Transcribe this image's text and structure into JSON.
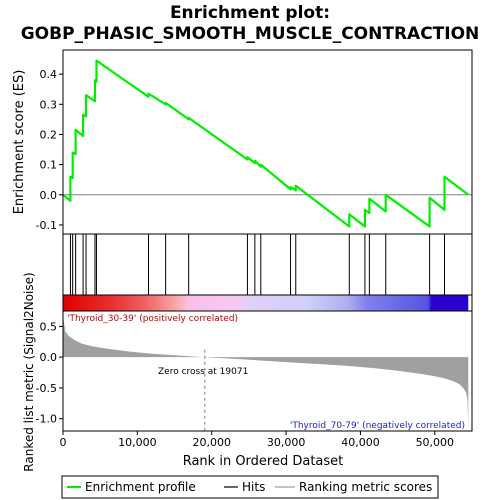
{
  "chart_data": {
    "type": "line",
    "title_line1": "Enrichment plot:",
    "title_line2": "GOBP_PHASIC_SMOOTH_MUSCLE_CONTRACTION",
    "es_ylabel": "Enrichment score (ES)",
    "metric_ylabel": "Ranked list metric (Signal2Noise)",
    "xlabel": "Rank in Ordered Dataset",
    "xlim": [
      0,
      55000
    ],
    "es_ylim": [
      -0.13,
      0.48
    ],
    "metric_ylim": [
      -1.2,
      0.75
    ],
    "x_ticks": [
      "0",
      "10,000",
      "20,000",
      "30,000",
      "40,000",
      "50,000"
    ],
    "x_tick_values": [
      0,
      10000,
      20000,
      30000,
      40000,
      50000
    ],
    "es_ticks": [
      "-0.1",
      "0.0",
      "0.1",
      "0.2",
      "0.3",
      "0.4"
    ],
    "es_tick_values": [
      -0.1,
      0.0,
      0.1,
      0.2,
      0.3,
      0.4
    ],
    "metric_ticks": [
      "-1.0",
      "-0.5",
      "0.0",
      "0.5"
    ],
    "metric_tick_values": [
      -1.0,
      -0.5,
      0.0,
      0.5
    ],
    "n_genes": 54500,
    "zero_cross": 19071,
    "zero_cross_text": "Zero cross at 19071",
    "pos_label": "'Thyroid_30-39' (positively correlated)",
    "neg_label": "'Thyroid_70-79' (negatively correlated)",
    "hits": [
      1000,
      1300,
      1700,
      2700,
      3100,
      4300,
      4500,
      11500,
      13800,
      16900,
      24800,
      25800,
      26600,
      30600,
      31300,
      38500,
      40600,
      41200,
      43400,
      49300,
      51300
    ],
    "es_profile": {
      "x": [
        0,
        1000,
        1000,
        1300,
        1300,
        1700,
        1700,
        2700,
        2700,
        3100,
        3100,
        4300,
        4300,
        4500,
        4500,
        11500,
        11500,
        13800,
        13800,
        16900,
        16900,
        24800,
        24800,
        25800,
        25800,
        26600,
        26600,
        30600,
        30600,
        31300,
        31300,
        38500,
        38500,
        40600,
        40600,
        41200,
        41200,
        43400,
        43400,
        49300,
        49300,
        51300,
        51300,
        54500
      ],
      "y": [
        0.0,
        -0.02,
        0.06,
        0.055,
        0.14,
        0.135,
        0.215,
        0.195,
        0.265,
        0.26,
        0.33,
        0.31,
        0.38,
        0.375,
        0.445,
        0.325,
        0.335,
        0.3,
        0.305,
        0.25,
        0.255,
        0.117,
        0.125,
        0.105,
        0.113,
        0.093,
        0.1,
        0.018,
        0.025,
        0.015,
        0.03,
        -0.105,
        -0.065,
        -0.105,
        -0.05,
        -0.06,
        -0.013,
        -0.055,
        0.0,
        -0.105,
        -0.01,
        -0.05,
        0.06,
        0.0
      ]
    },
    "metric_profile": {
      "x": [
        0,
        300,
        800,
        1500,
        2500,
        4000,
        6000,
        9000,
        12000,
        15000,
        17000,
        19071,
        22000,
        26000,
        30000,
        34000,
        38000,
        42000,
        45000,
        48000,
        50000,
        51500,
        52500,
        53300,
        53800,
        54200,
        54400,
        54500
      ],
      "y": [
        0.7,
        0.42,
        0.34,
        0.28,
        0.22,
        0.175,
        0.135,
        0.09,
        0.055,
        0.03,
        0.015,
        0.0,
        -0.02,
        -0.05,
        -0.08,
        -0.11,
        -0.14,
        -0.18,
        -0.22,
        -0.27,
        -0.31,
        -0.35,
        -0.39,
        -0.44,
        -0.5,
        -0.58,
        -0.7,
        -1.15
      ]
    },
    "colors": {
      "es_line": "#00ee00",
      "hit": "#000000",
      "metric_fill": "#a0a0a0",
      "zero_line": "#808080",
      "pos_label": "#cc0000",
      "neg_label": "#2222cc",
      "heat_stops": [
        [
          0.0,
          "#dd0000"
        ],
        [
          0.12,
          "#e83030"
        ],
        [
          0.2,
          "#f06060"
        ],
        [
          0.28,
          "#f8a8a8"
        ],
        [
          0.31,
          "#f8c0e8"
        ],
        [
          0.42,
          "#f8c8f0"
        ],
        [
          0.46,
          "#e0d0f8"
        ],
        [
          0.6,
          "#d0d0f8"
        ],
        [
          0.7,
          "#b0b0f0"
        ],
        [
          0.75,
          "#8080ee"
        ],
        [
          0.9,
          "#5555e0"
        ],
        [
          0.91,
          "#2a00cc"
        ],
        [
          1.0,
          "#2a00cc"
        ]
      ]
    },
    "legend": {
      "items": [
        {
          "label": "Enrichment profile",
          "kind": "es"
        },
        {
          "label": "Hits",
          "kind": "hit"
        },
        {
          "label": "Ranking metric scores",
          "kind": "metric"
        }
      ]
    }
  }
}
